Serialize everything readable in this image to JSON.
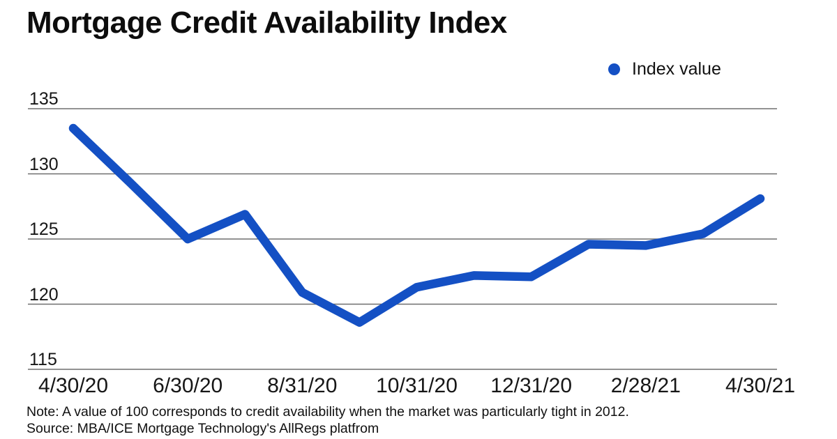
{
  "title": "Mortgage Credit Availability Index",
  "legend": {
    "label": "Index value"
  },
  "note": "Note: A value of 100 corresponds to credit availability when the market was particularly tight in 2012.",
  "source": "Source: MBA/ICE Mortgage Technology's AllRegs platfrom",
  "colors": {
    "line": "#1450c4",
    "gridline": "#6e6e6e",
    "text": "#111111",
    "background": "#ffffff"
  },
  "chart_data": {
    "type": "line",
    "title": "Mortgage Credit Availability Index",
    "x": [
      "4/30/20",
      "5/31/20",
      "6/30/20",
      "7/31/20",
      "8/31/20",
      "9/30/20",
      "10/31/20",
      "11/30/20",
      "12/31/20",
      "1/31/21",
      "2/28/21",
      "3/31/21",
      "4/30/21"
    ],
    "series": [
      {
        "name": "Index value",
        "values": [
          133.5,
          129.3,
          125.0,
          126.9,
          120.9,
          118.6,
          121.3,
          122.2,
          122.1,
          124.6,
          124.5,
          125.4,
          128.1
        ]
      }
    ],
    "ylim": [
      115,
      135
    ],
    "yticks": [
      135,
      130,
      125,
      120,
      115
    ],
    "xtick_labels": [
      "4/30/20",
      "6/30/20",
      "8/31/20",
      "10/31/20",
      "12/31/20",
      "2/28/21",
      "4/30/21"
    ],
    "xtick_every": 2,
    "xlabel": "",
    "ylabel": "",
    "grid": "horizontal",
    "legend_position": "top-right"
  }
}
